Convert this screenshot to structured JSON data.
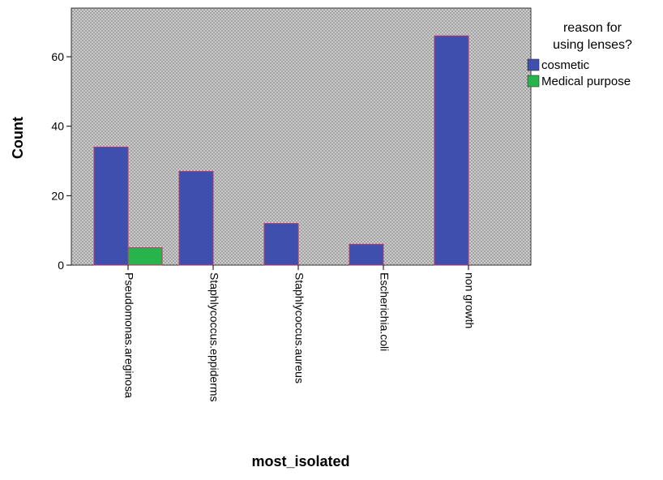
{
  "chart_data": {
    "type": "bar",
    "title": "",
    "xlabel": "most_isolated",
    "ylabel": "Count",
    "ylim": [
      0,
      74
    ],
    "yticks": [
      0,
      20,
      40,
      60
    ],
    "grid": false,
    "categories": [
      "Pseudomonas.areginosa",
      "Staphlycoccus.eppiderms",
      "Staphlycoccus.aureus",
      "Escherichia.coli",
      "non growth"
    ],
    "series": [
      {
        "name": "cosmetic",
        "color": "#3f4fae",
        "values": [
          34,
          27,
          12,
          6,
          66
        ]
      },
      {
        "name": "Medical purpose",
        "color": "#27b44a",
        "values": [
          5,
          0,
          0,
          0,
          0
        ]
      }
    ],
    "legend": {
      "title_line1": "reason for",
      "title_line2": "using lenses?",
      "placement": "right"
    },
    "bar_outline_color": "#b5386e",
    "plot_background": "crosshatch-gray"
  }
}
